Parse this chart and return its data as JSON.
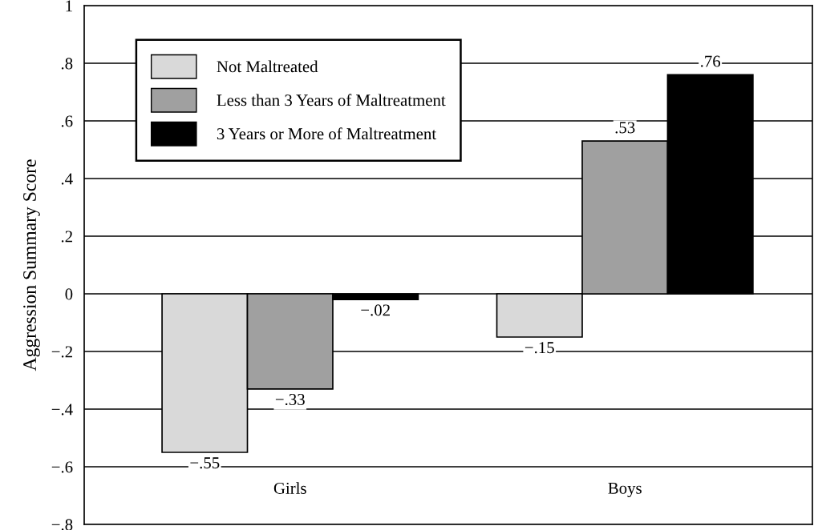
{
  "chart_data": {
    "type": "bar",
    "ylabel": "Aggression Summary Score",
    "categories": [
      "Girls",
      "Boys"
    ],
    "series": [
      {
        "name": "Not Maltreated",
        "color": "#d9d9d9",
        "values": [
          -0.55,
          -0.15
        ]
      },
      {
        "name": "Less than 3 Years of Maltreatment",
        "color": "#a0a0a0",
        "values": [
          -0.33,
          0.53
        ]
      },
      {
        "name": "3 Years or More of Maltreatment",
        "color": "#000000",
        "values": [
          -0.02,
          0.76
        ]
      }
    ],
    "value_labels": [
      [
        "−.55",
        "−.15"
      ],
      [
        "−.33",
        ".53"
      ],
      [
        "−.02",
        ".76"
      ]
    ],
    "ylim": [
      -0.8,
      1
    ],
    "yticks": [
      {
        "value": -0.8,
        "label": "−.8"
      },
      {
        "value": -0.6,
        "label": "−.6"
      },
      {
        "value": -0.4,
        "label": "−.4"
      },
      {
        "value": -0.2,
        "label": "−.2"
      },
      0,
      {
        "value": 0.2,
        "label": ".2"
      },
      {
        "value": 0.4,
        "label": ".4"
      },
      {
        "value": 0.6,
        "label": ".6"
      },
      {
        "value": 0.8,
        "label": ".8"
      },
      1
    ],
    "grid": "y",
    "legend": "top left"
  }
}
